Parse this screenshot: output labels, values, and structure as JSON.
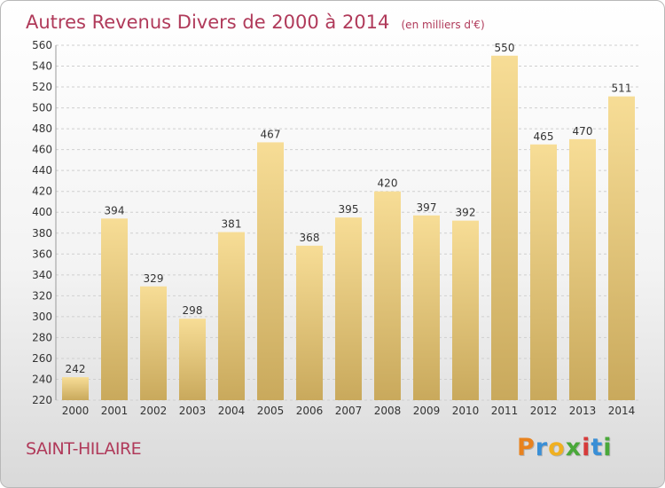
{
  "title": "Autres Revenus Divers de 2000 à 2014",
  "title_unit": "(en milliers d'€)",
  "place_label": "SAINT-HILAIRE",
  "logo": {
    "letters": [
      "P",
      "r",
      "o",
      "x",
      "i",
      "t",
      "i"
    ],
    "colors": [
      "#e8821e",
      "#3a8fd6",
      "#f0b020",
      "#4aa83a",
      "#d63a3a",
      "#3a8fd6",
      "#4aa83a"
    ]
  },
  "colors": {
    "bar_light": "#f7dd96",
    "bar_dark": "#c9a95c",
    "title": "#b03a5a",
    "grid": "#cfcfcf"
  },
  "chart_data": {
    "type": "bar",
    "title": "Autres Revenus Divers de 2000 à 2014",
    "unit": "(en milliers d'€)",
    "categories": [
      "2000",
      "2001",
      "2002",
      "2003",
      "2004",
      "2005",
      "2006",
      "2007",
      "2008",
      "2009",
      "2010",
      "2011",
      "2012",
      "2013",
      "2014"
    ],
    "values": [
      242,
      394,
      329,
      298,
      381,
      467,
      368,
      395,
      420,
      397,
      392,
      550,
      465,
      470,
      511
    ],
    "ylim": [
      220,
      560
    ],
    "yticks": [
      220,
      240,
      260,
      280,
      300,
      320,
      340,
      360,
      380,
      400,
      420,
      440,
      460,
      480,
      500,
      520,
      540,
      560
    ],
    "grid": true,
    "data_labels": true
  }
}
